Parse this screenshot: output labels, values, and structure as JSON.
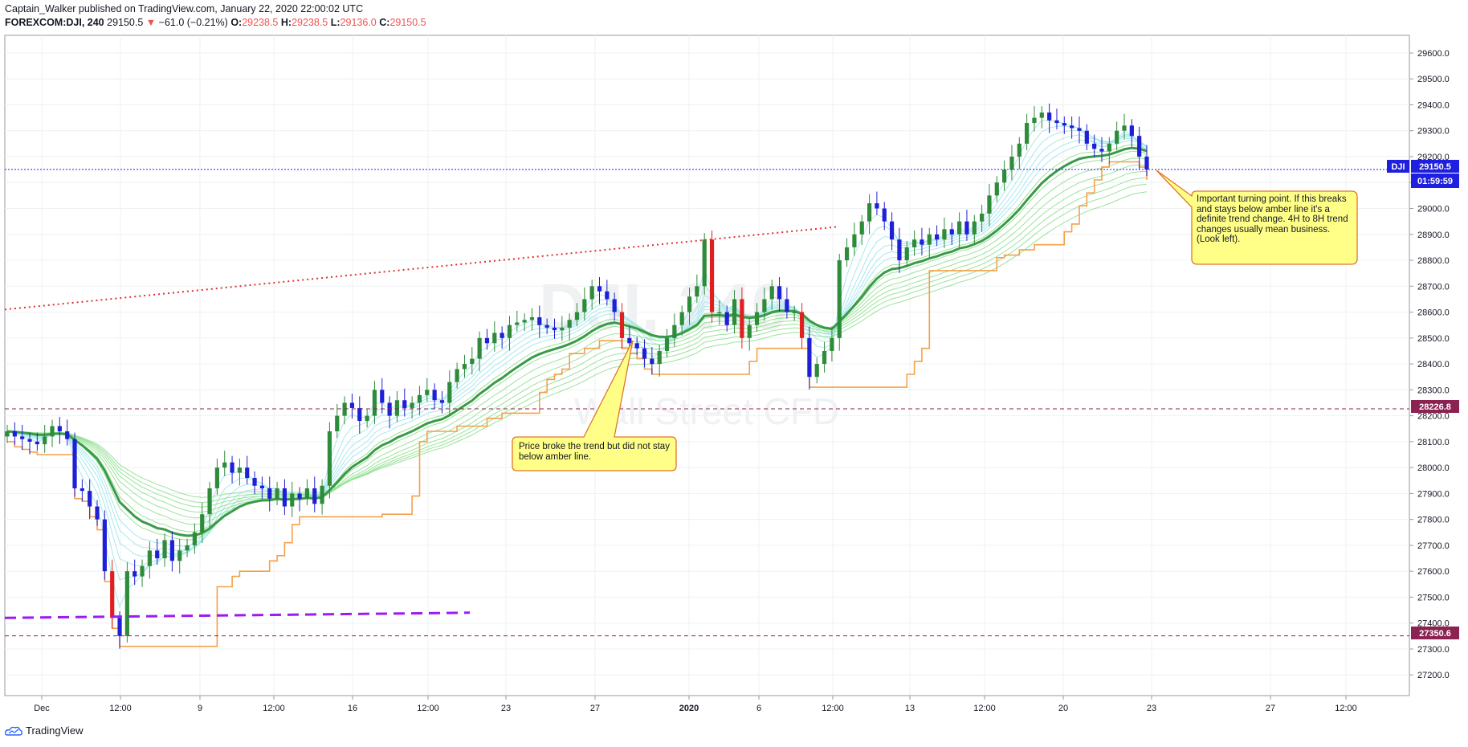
{
  "header": {
    "line1": "Captain_Walker published on TradingView.com, January 22, 2020 22:00:02 UTC",
    "symbol": "FOREXCOM:DJI, 240",
    "last": "29150.5",
    "arrow": "▼",
    "change": "−61.0 (−0.21%)",
    "o_label": "O:",
    "o_val": "29238.5",
    "h_label": "H:",
    "h_val": "29238.5",
    "l_label": "L:",
    "l_val": "29136.0",
    "c_label": "C:",
    "c_val": "29150.5"
  },
  "brand": {
    "name": "TradingView",
    "icon": "tradingview-cloud-icon"
  },
  "watermark": {
    "line1": "DJI, 240",
    "line2": "Wall Street CFD"
  },
  "colors": {
    "up": "#2e8b3a",
    "down_blue": "#1f1fd6",
    "down_red": "#e02020",
    "amber": "#f5a04a",
    "trend_red": "#e03030",
    "purple": "#9b1cf0",
    "level": "#8b2252",
    "price_line": "#1f1fe0",
    "grid": "#eef0f3"
  },
  "price_tags": {
    "current_label": "DJI",
    "current": "29150.5",
    "countdown": "01:59:59",
    "level_high": "28226.8",
    "level_low": "27350.6"
  },
  "annotations": {
    "right": "Important turning point. If this breaks and stays below amber line it's a definite trend change. 4H to 8H trend changes usually mean business. (Look left).",
    "middle": "Price broke the trend but did not stay below amber line."
  },
  "chart_data": {
    "type": "line",
    "title": "FOREXCOM:DJI, 240",
    "ylim": [
      27100,
      29650
    ],
    "y_ticks": [
      29600,
      29500,
      29400,
      29300,
      29200,
      29100,
      29000,
      28900,
      28800,
      28700,
      28600,
      28500,
      28400,
      28300,
      28200,
      28100,
      28000,
      27900,
      27800,
      27700,
      27600,
      27500,
      27400,
      27300,
      27200
    ],
    "x_tick_labels": [
      "Dec",
      "12:00",
      "9",
      "12:00",
      "16",
      "12:00",
      "23",
      "27",
      "2020",
      "6",
      "12:00",
      "13",
      "12:00",
      "20",
      "23",
      "27",
      "12:00"
    ],
    "horizontal_levels": [
      28226.8,
      27350.6
    ],
    "current_price": 29150.5,
    "candles_close": [
      28140,
      28120,
      28110,
      28100,
      28090,
      28120,
      28160,
      28140,
      28110,
      27920,
      27910,
      27850,
      27800,
      27600,
      27420,
      27350,
      27600,
      27580,
      27620,
      27680,
      27650,
      27720,
      27640,
      27680,
      27700,
      27750,
      27820,
      27920,
      28000,
      28020,
      27980,
      28000,
      27960,
      27930,
      27920,
      27880,
      27920,
      27850,
      27900,
      27880,
      27920,
      27860,
      27930,
      28140,
      28200,
      28250,
      28230,
      28180,
      28200,
      28300,
      28250,
      28200,
      28260,
      28230,
      28250,
      28280,
      28300,
      28260,
      28250,
      28330,
      28380,
      28400,
      28420,
      28500,
      28480,
      28520,
      28500,
      28550,
      28560,
      28570,
      28580,
      28550,
      28540,
      28530,
      28540,
      28570,
      28600,
      28650,
      28700,
      28680,
      28650,
      28600,
      28500,
      28480,
      28460,
      28420,
      28400,
      28450,
      28500,
      28550,
      28600,
      28660,
      28700,
      28880,
      28600,
      28600,
      28550,
      28650,
      28500,
      28550,
      28600,
      28650,
      28700,
      28650,
      28600,
      28600,
      28500,
      28350,
      28400,
      28450,
      28500,
      28800,
      28850,
      28900,
      28950,
      29020,
      29000,
      28950,
      28880,
      28800,
      28850,
      28880,
      28860,
      28900,
      28880,
      28920,
      28900,
      28950,
      28900,
      28950,
      28980,
      29050,
      29100,
      29150,
      29200,
      29250,
      29330,
      29350,
      29370,
      29340,
      29330,
      29320,
      29310,
      29300,
      29250,
      29230,
      29220,
      29250,
      29300,
      29320,
      29280,
      29200,
      29150.5
    ],
    "series": [
      {
        "name": "DJI, 240",
        "values": "candles_close"
      }
    ]
  }
}
